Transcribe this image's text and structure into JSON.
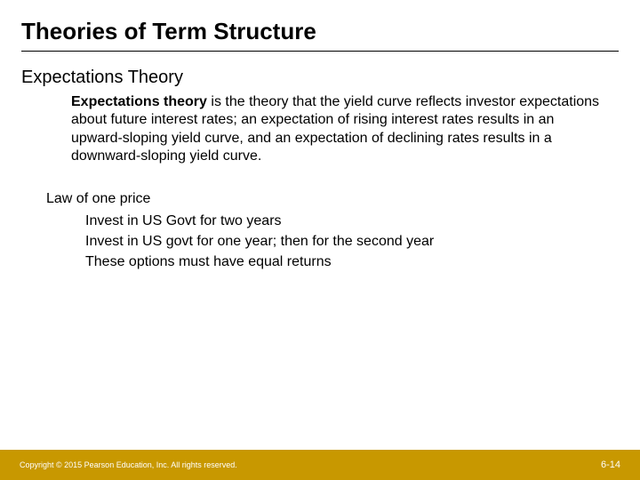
{
  "title": "Theories of Term Structure",
  "subtitle": "Expectations Theory",
  "body": {
    "lead": "Expectations theory",
    "rest": " is the theory that the yield curve reflects investor expectations about future interest rates; an expectation of rising interest rates results in an upward-sloping yield curve, and an expectation of declining rates results in a downward-sloping yield curve."
  },
  "law": {
    "heading": "Law of one price",
    "items": [
      "Invest in US Govt for two years",
      "Invest in US govt for one year; then for the second year",
      "These options must have equal returns"
    ]
  },
  "footer": {
    "copyright": "Copyright © 2015 Pearson Education, Inc. All rights reserved.",
    "page": "6-14",
    "background_color": "#c89800",
    "text_color": "#ffffff"
  },
  "colors": {
    "text": "#000000",
    "background": "#ffffff"
  }
}
